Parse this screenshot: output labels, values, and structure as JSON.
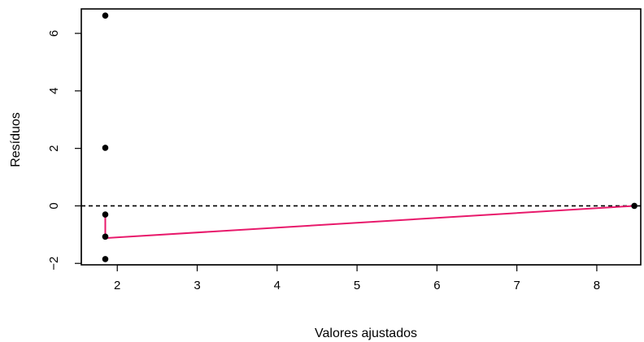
{
  "chart_data": {
    "type": "scatter",
    "xlabel": "Valores ajustados",
    "ylabel": "Resíduos",
    "xlim": [
      1.55,
      8.55
    ],
    "ylim": [
      -2.05,
      6.85
    ],
    "x_ticks": [
      2,
      3,
      4,
      5,
      6,
      7,
      8
    ],
    "x_tick_labels": [
      "2",
      "3",
      "4",
      "5",
      "6",
      "7",
      "8"
    ],
    "y_ticks": [
      -2,
      0,
      2,
      4,
      6
    ],
    "y_tick_labels": [
      "−2",
      "0",
      "2",
      "4",
      "6"
    ],
    "grid": false,
    "points": [
      {
        "x": 1.85,
        "y": 6.62
      },
      {
        "x": 1.85,
        "y": 2.02
      },
      {
        "x": 1.85,
        "y": -0.3
      },
      {
        "x": 1.85,
        "y": -1.07
      },
      {
        "x": 1.85,
        "y": -1.85
      },
      {
        "x": 8.47,
        "y": 0.0
      }
    ],
    "reference_line": {
      "y": 0,
      "style": "dashed",
      "color": "#000000"
    },
    "smooth_line": {
      "color": "#e8196b",
      "x": [
        1.85,
        1.85,
        8.47
      ],
      "y": [
        -0.3,
        -1.12,
        0.0
      ]
    },
    "colors": {
      "points": "#000000",
      "axes": "#000000"
    }
  }
}
